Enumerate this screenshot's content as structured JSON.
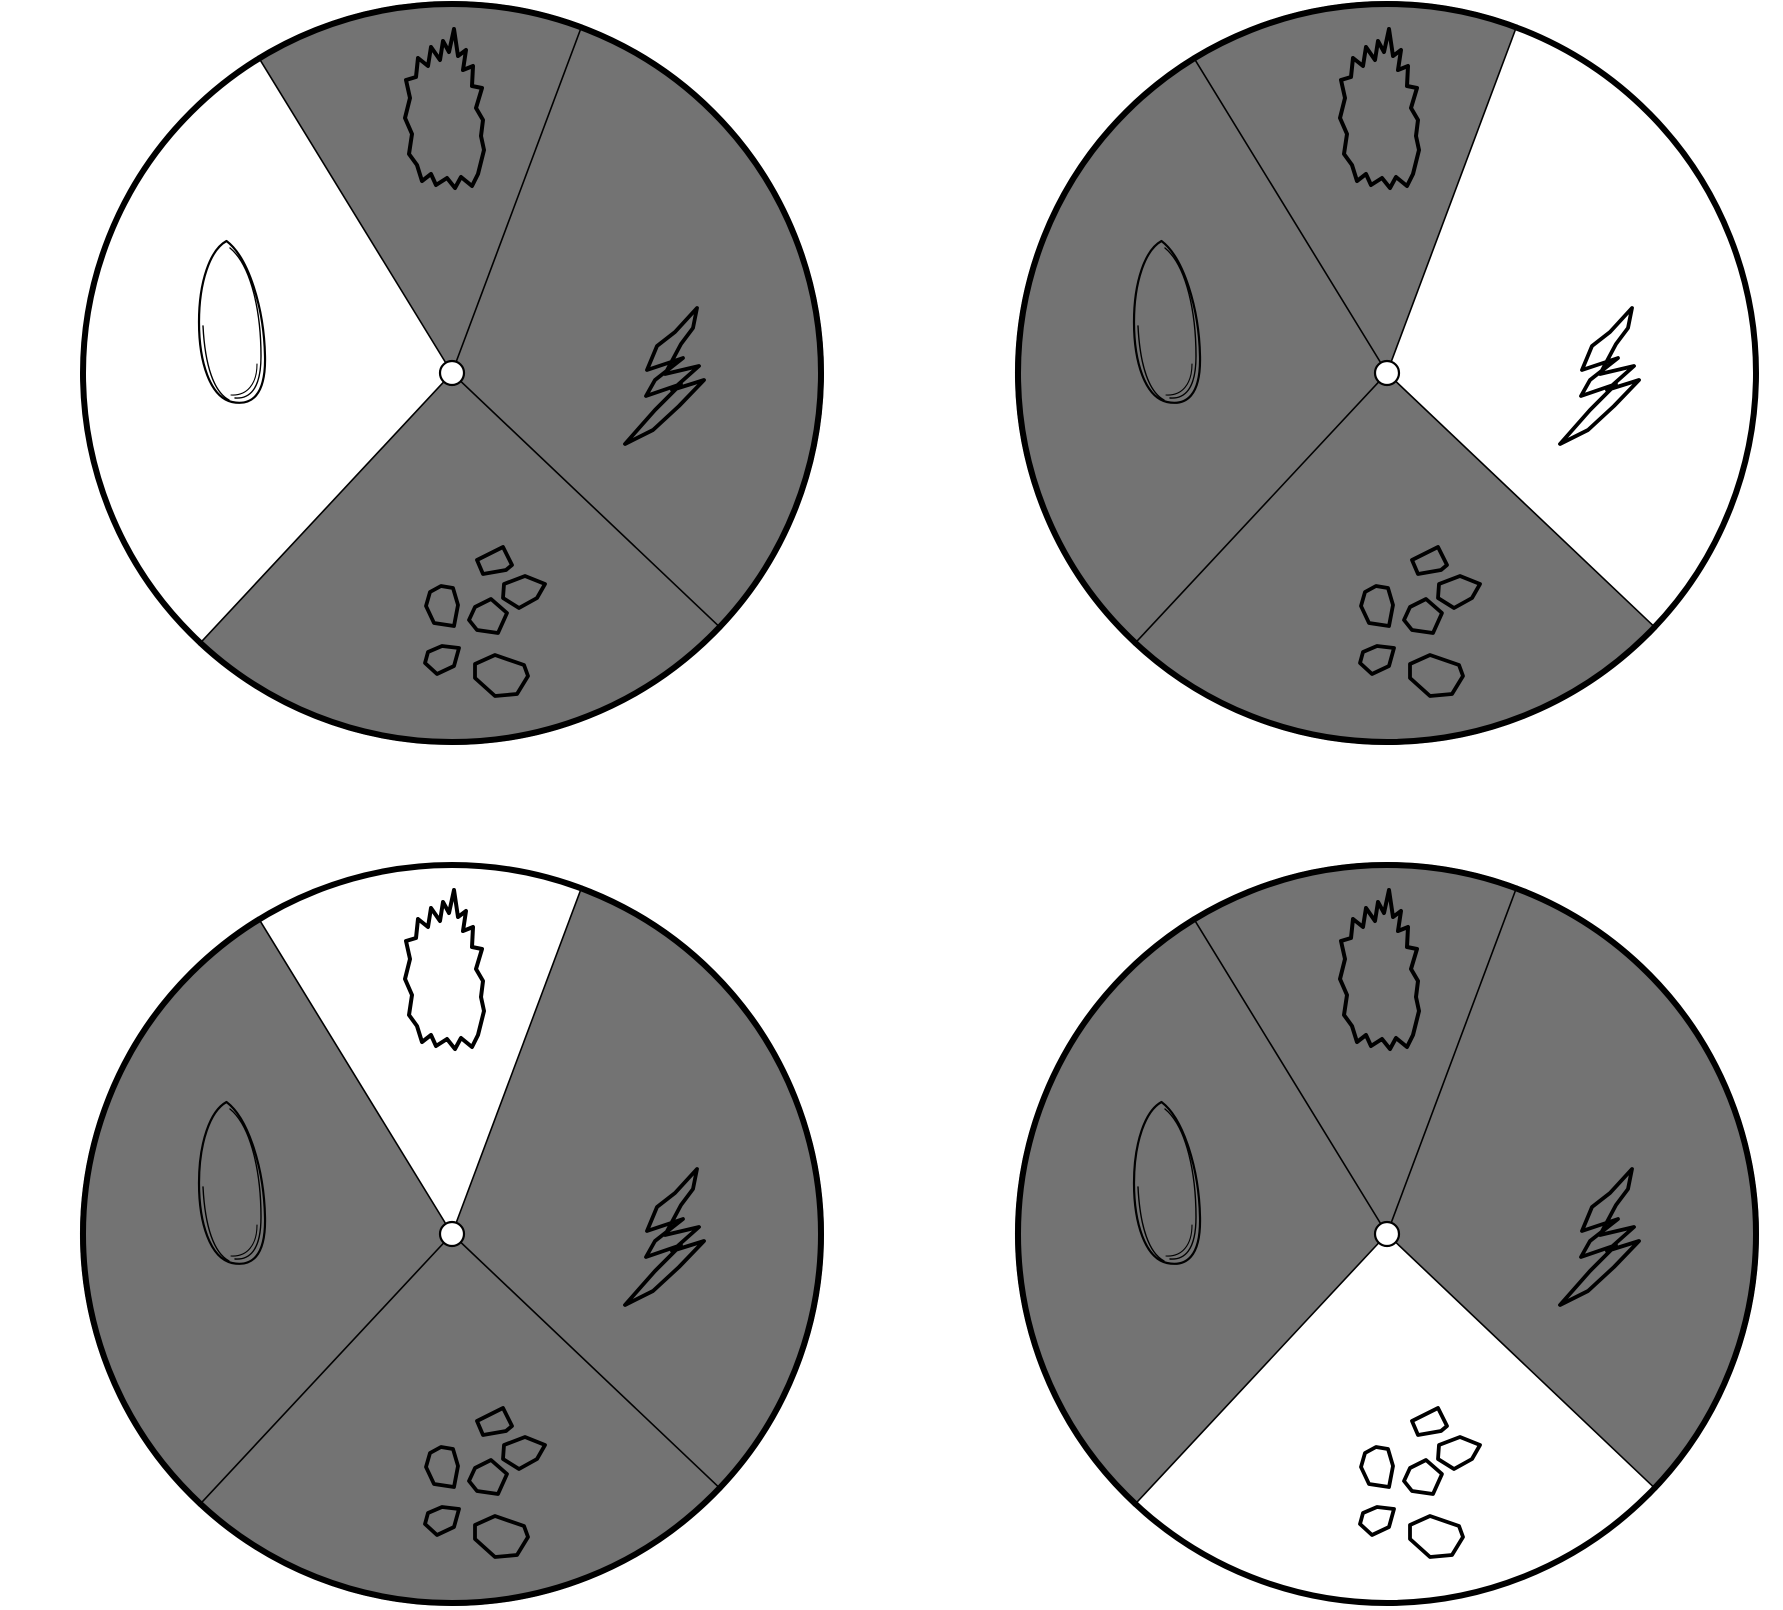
{
  "colors": {
    "inactive": "#737373",
    "active": "#ffffff",
    "line": "#000000"
  },
  "sectors": [
    {
      "id": "water",
      "icon": "water-drop-icon"
    },
    {
      "id": "fire",
      "icon": "flame-icon"
    },
    {
      "id": "lightning",
      "icon": "lightning-bolt-icon"
    },
    {
      "id": "earth",
      "icon": "rocks-icon"
    }
  ],
  "dials": [
    {
      "name": "dial-water-highlighted",
      "active": "water"
    },
    {
      "name": "dial-lightning-highlighted",
      "active": "lightning"
    },
    {
      "name": "dial-fire-highlighted",
      "active": "fire"
    },
    {
      "name": "dial-earth-highlighted",
      "active": "earth"
    }
  ]
}
